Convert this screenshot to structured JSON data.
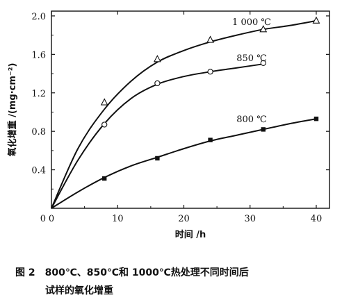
{
  "chart_data": {
    "type": "scatter",
    "xlabel": "时间 /h",
    "ylabel": "氧化增重 /(mg·cm⁻²)",
    "xlim": [
      0,
      42
    ],
    "ylim": [
      0,
      2.05
    ],
    "x_ticks": [
      0,
      10,
      20,
      30,
      40
    ],
    "x_tick_labels": [
      "0",
      "10",
      "20",
      "30",
      "40"
    ],
    "y_ticks": [
      0.4,
      0.8,
      1.2,
      1.6,
      2.0
    ],
    "y_tick_labels": [
      "0.4",
      "0.8",
      "1.2",
      "1.6",
      "2.0"
    ],
    "grid": false,
    "series": [
      {
        "name": "1 000 ℃",
        "marker": "triangle",
        "points": [
          [
            8,
            1.1
          ],
          [
            16,
            1.55
          ],
          [
            24,
            1.75
          ],
          [
            32,
            1.86
          ],
          [
            40,
            1.95
          ]
        ],
        "fit": [
          [
            0,
            0
          ],
          [
            4,
            0.62
          ],
          [
            8,
            1.03
          ],
          [
            12,
            1.32
          ],
          [
            16,
            1.52
          ],
          [
            20,
            1.64
          ],
          [
            24,
            1.73
          ],
          [
            28,
            1.8
          ],
          [
            32,
            1.86
          ],
          [
            36,
            1.9
          ],
          [
            40,
            1.95
          ]
        ]
      },
      {
        "name": "850 ℃",
        "marker": "circle",
        "points": [
          [
            8,
            0.87
          ],
          [
            16,
            1.3
          ],
          [
            24,
            1.42
          ],
          [
            32,
            1.51
          ]
        ],
        "fit": [
          [
            0,
            0
          ],
          [
            4,
            0.5
          ],
          [
            8,
            0.88
          ],
          [
            12,
            1.14
          ],
          [
            16,
            1.29
          ],
          [
            20,
            1.37
          ],
          [
            24,
            1.42
          ],
          [
            28,
            1.46
          ],
          [
            32,
            1.5
          ]
        ]
      },
      {
        "name": "800 ℃",
        "marker": "square",
        "points": [
          [
            8,
            0.31
          ],
          [
            16,
            0.52
          ],
          [
            24,
            0.71
          ],
          [
            32,
            0.82
          ],
          [
            40,
            0.93
          ]
        ],
        "fit": [
          [
            0,
            0
          ],
          [
            4,
            0.17
          ],
          [
            8,
            0.32
          ],
          [
            12,
            0.44
          ],
          [
            16,
            0.53
          ],
          [
            20,
            0.62
          ],
          [
            24,
            0.7
          ],
          [
            28,
            0.76
          ],
          [
            32,
            0.82
          ],
          [
            36,
            0.88
          ],
          [
            40,
            0.93
          ]
        ]
      }
    ]
  },
  "caption": {
    "line1": "图 2　800℃、850℃和 1000℃热处理不同时间后",
    "line2": "试样的氧化增重"
  }
}
